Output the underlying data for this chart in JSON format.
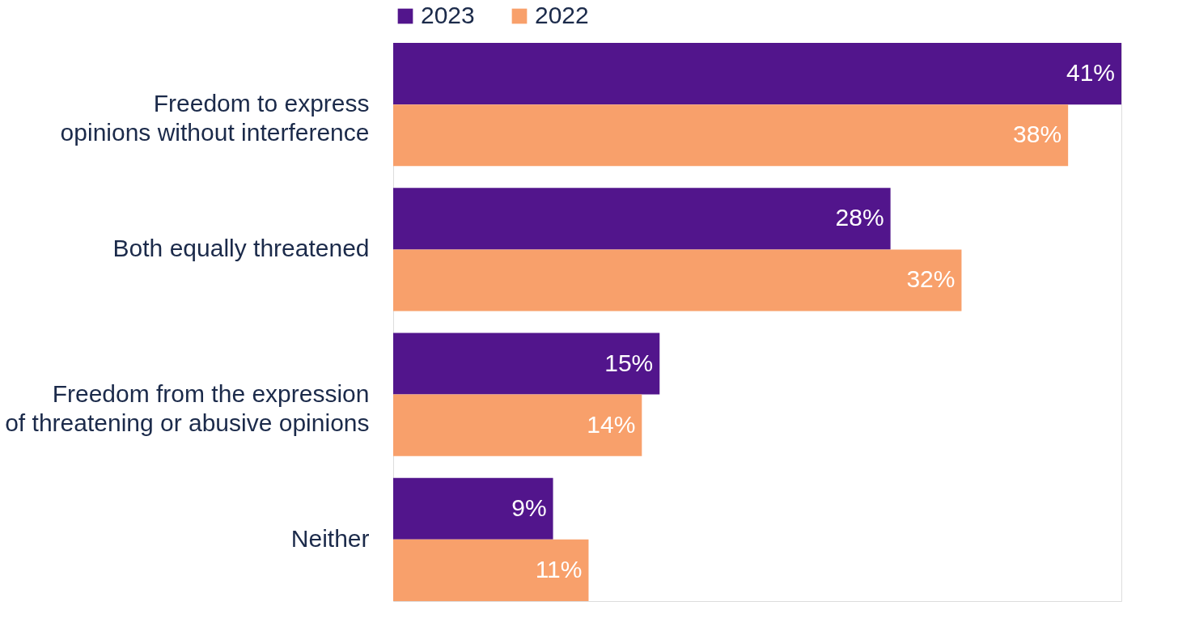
{
  "chart_data": {
    "type": "bar",
    "orientation": "horizontal",
    "legend": "top",
    "categories": [
      "Freedom to express\nopinions without interference",
      "Both equally threatened",
      "Freedom from the expression\nof threatening or abusive opinions",
      "Neither"
    ],
    "series": [
      {
        "name": "2023",
        "color": "#52158c",
        "values": [
          41,
          28,
          15,
          9
        ],
        "value_labels": [
          "41%",
          "28%",
          "15%",
          "9%"
        ]
      },
      {
        "name": "2022",
        "color": "#f8a06b",
        "values": [
          38,
          32,
          14,
          11
        ],
        "value_labels": [
          "38%",
          "32%",
          "14%",
          "11%"
        ]
      }
    ]
  }
}
